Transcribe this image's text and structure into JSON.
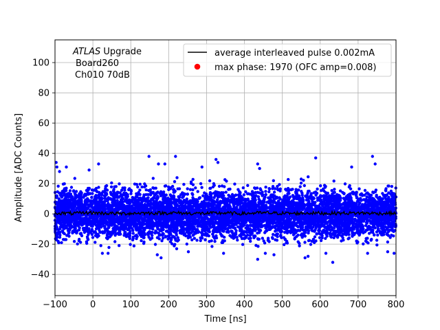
{
  "chart_data": {
    "type": "scatter",
    "title": "",
    "xlabel": "Time [ns]",
    "ylabel": "Amplitude [ADC Counts]",
    "xlim": [
      -100,
      800
    ],
    "ylim": [
      -54,
      115
    ],
    "xticks": [
      -100,
      0,
      100,
      200,
      300,
      400,
      500,
      600,
      700,
      800
    ],
    "xtick_labels": [
      "−100",
      "0",
      "100",
      "200",
      "300",
      "400",
      "500",
      "600",
      "700",
      "800"
    ],
    "yticks": [
      -40,
      -20,
      0,
      20,
      40,
      60,
      80,
      100
    ],
    "ytick_labels": [
      "−40",
      "−20",
      "0",
      "20",
      "40",
      "60",
      "80",
      "100"
    ],
    "grid": true,
    "annotation": {
      "experiment": "ATLAS",
      "suffix": " Upgrade",
      "line2": "Board260",
      "line3": "Ch010 70dB"
    },
    "legend": {
      "placement": "top-right",
      "entries": [
        {
          "label": "average interleaved pulse 0.002mA",
          "marker": "line",
          "color": "#000000"
        },
        {
          "label": "max phase: 1970 (OFC amp=0.008)",
          "marker": "dot",
          "color": "#ff0000"
        }
      ]
    },
    "series": [
      {
        "name": "samples",
        "kind": "scatter",
        "color": "#0000ff",
        "marker_radius": 2.2,
        "description_stats": {
          "x_range": [
            -100,
            800
          ],
          "y_center": 0,
          "y_sigma": 8,
          "y_extremes": [
            -32,
            38
          ]
        },
        "outliers": [
          {
            "x": -97,
            "y": 34
          },
          {
            "x": -95,
            "y": 31
          },
          {
            "x": -88,
            "y": 28
          },
          {
            "x": -70,
            "y": 31
          },
          {
            "x": -10,
            "y": 29
          },
          {
            "x": 15,
            "y": 33
          },
          {
            "x": 148,
            "y": 38
          },
          {
            "x": 218,
            "y": 38
          },
          {
            "x": 173,
            "y": 33
          },
          {
            "x": 190,
            "y": 33
          },
          {
            "x": 288,
            "y": 31
          },
          {
            "x": 325,
            "y": 36
          },
          {
            "x": 330,
            "y": 34
          },
          {
            "x": 435,
            "y": 33
          },
          {
            "x": 440,
            "y": 30
          },
          {
            "x": 588,
            "y": 37
          },
          {
            "x": 683,
            "y": 31
          },
          {
            "x": 738,
            "y": 38
          },
          {
            "x": 745,
            "y": 33
          },
          {
            "x": 435,
            "y": -30
          },
          {
            "x": 170,
            "y": -27
          },
          {
            "x": 180,
            "y": -29
          },
          {
            "x": 633,
            "y": -32
          },
          {
            "x": 568,
            "y": -28
          },
          {
            "x": 560,
            "y": -29
          },
          {
            "x": 345,
            "y": -26
          },
          {
            "x": 478,
            "y": -27
          },
          {
            "x": 795,
            "y": -26
          },
          {
            "x": 40,
            "y": -26
          },
          {
            "x": 25,
            "y": -26
          },
          {
            "x": 455,
            "y": -26
          },
          {
            "x": 252,
            "y": -25
          },
          {
            "x": 615,
            "y": -26
          },
          {
            "x": 725,
            "y": -26
          },
          {
            "x": 778,
            "y": -25
          }
        ]
      },
      {
        "name": "average interleaved pulse 0.002mA",
        "kind": "line",
        "color": "#000000",
        "x": [
          -100,
          -55,
          -10,
          35,
          80,
          125,
          170,
          215,
          260,
          305,
          350,
          395,
          440,
          485,
          530,
          575,
          620,
          665,
          710,
          755,
          800
        ],
        "y": [
          0.5,
          0.3,
          0.8,
          0.4,
          0.2,
          0.6,
          0.5,
          0.7,
          0.3,
          0.4,
          0.6,
          0.2,
          0.7,
          0.5,
          0.3,
          0.6,
          0.4,
          0.5,
          0.6,
          0.3,
          0.5
        ]
      },
      {
        "name": "max phase: 1970 (OFC amp=0.008)",
        "kind": "point",
        "color": "#ff0000",
        "x": [],
        "y": []
      }
    ]
  }
}
